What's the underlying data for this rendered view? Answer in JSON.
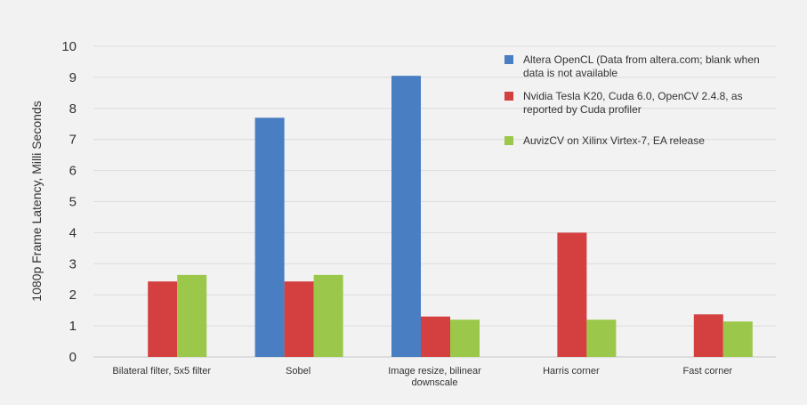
{
  "chart_data": {
    "type": "bar",
    "title": "",
    "xlabel": "",
    "ylabel": "1080p Frame Latency, Milli Seconds",
    "ylim": [
      0,
      10
    ],
    "yticks": [
      0,
      1,
      2,
      3,
      4,
      5,
      6,
      7,
      8,
      9,
      10
    ],
    "grid": true,
    "legend_position": "top-right",
    "categories": [
      [
        "Bilateral filter, 5x5 filter"
      ],
      [
        "Sobel"
      ],
      [
        "Image resize, bilinear",
        "downscale"
      ],
      [
        "Harris corner"
      ],
      [
        "Fast corner"
      ]
    ],
    "series": [
      {
        "name": [
          "Altera OpenCL (Data from altera.com; blank when",
          "data is not available"
        ],
        "color": "#4a7ec2",
        "values": [
          null,
          7.7,
          9.05,
          null,
          null
        ]
      },
      {
        "name": [
          "Nvidia Tesla K20, Cuda 6.0, OpenCV 2.4.8, as",
          "reported by Cuda profiler"
        ],
        "color": "#d44040",
        "values": [
          2.43,
          2.43,
          1.3,
          4.0,
          1.37
        ]
      },
      {
        "name": [
          "AuvizCV on Xilinx Virtex-7, EA release"
        ],
        "color": "#9bc84a",
        "values": [
          2.64,
          2.64,
          1.2,
          1.2,
          1.14
        ]
      }
    ]
  }
}
